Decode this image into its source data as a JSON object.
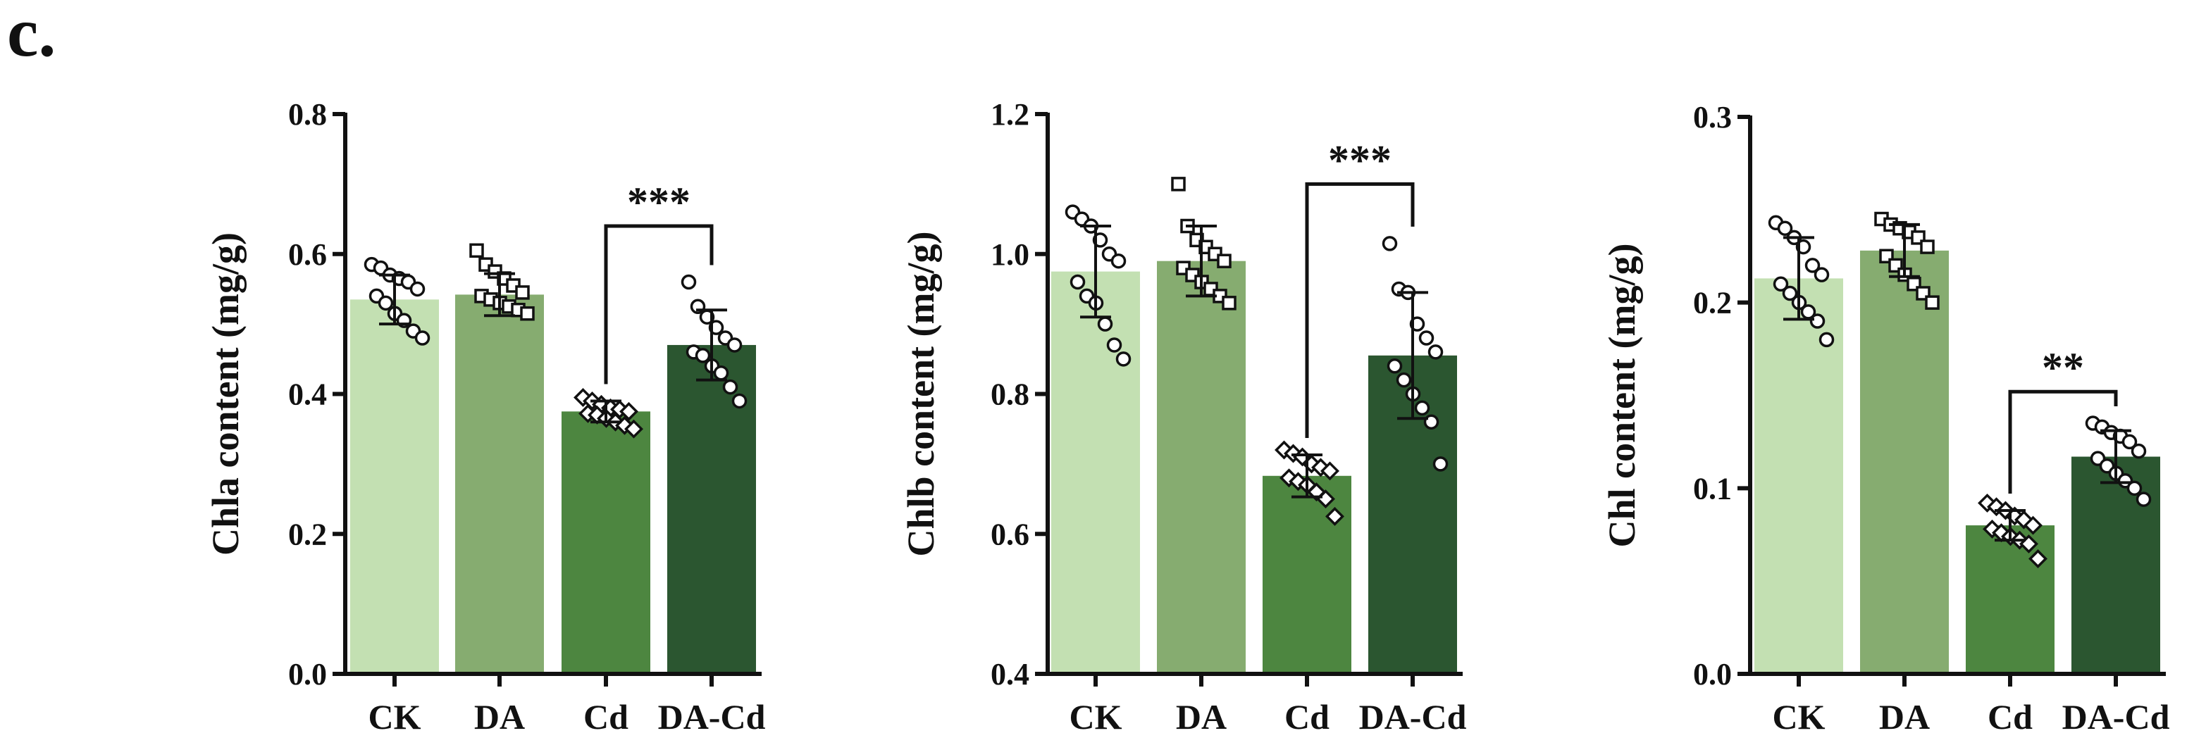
{
  "panel_label": "c.",
  "colors": {
    "CK": "#c3e0b2",
    "DA": "#86ac70",
    "Cd": "#4d8640",
    "DA-Cd": "#2b5630",
    "axis": "#111111",
    "marker_stroke": "#111111"
  },
  "chart_data": [
    {
      "type": "bar",
      "title": "",
      "xlabel": "",
      "ylabel": "Chla content (mg/g)",
      "categories": [
        "CK",
        "DA",
        "Cd",
        "DA-Cd"
      ],
      "values": [
        0.535,
        0.542,
        0.375,
        0.47
      ],
      "errors": [
        0.035,
        0.03,
        0.015,
        0.05
      ],
      "ylim": [
        0.0,
        0.8
      ],
      "yticks": [
        "0.0",
        "0.2",
        "0.4",
        "0.6",
        "0.8"
      ],
      "points": [
        [
          0.585,
          0.58,
          0.57,
          0.565,
          0.56,
          0.55,
          0.54,
          0.53,
          0.515,
          0.505,
          0.49,
          0.48
        ],
        [
          0.605,
          0.585,
          0.575,
          0.565,
          0.555,
          0.545,
          0.54,
          0.535,
          0.53,
          0.525,
          0.52,
          0.515
        ],
        [
          0.395,
          0.39,
          0.385,
          0.38,
          0.378,
          0.375,
          0.372,
          0.37,
          0.365,
          0.36,
          0.355,
          0.35
        ],
        [
          0.56,
          0.525,
          0.51,
          0.495,
          0.48,
          0.47,
          0.46,
          0.455,
          0.44,
          0.43,
          0.41,
          0.39
        ]
      ],
      "markers": [
        "circle",
        "square",
        "diamond",
        "circle"
      ],
      "significance": [
        {
          "from": "Cd",
          "to": "DA-Cd",
          "label": "***",
          "y": 0.64
        }
      ]
    },
    {
      "type": "bar",
      "title": "",
      "xlabel": "",
      "ylabel": "Chlb content (mg/g)",
      "categories": [
        "CK",
        "DA",
        "Cd",
        "DA-Cd"
      ],
      "values": [
        0.975,
        0.99,
        0.683,
        0.855
      ],
      "errors": [
        0.065,
        0.05,
        0.03,
        0.09
      ],
      "ylim": [
        0.4,
        1.2
      ],
      "yticks": [
        "0.4",
        "0.6",
        "0.8",
        "1.0",
        "1.2"
      ],
      "points": [
        [
          1.06,
          1.05,
          1.04,
          1.02,
          1.0,
          0.99,
          0.96,
          0.94,
          0.93,
          0.9,
          0.87,
          0.85
        ],
        [
          1.1,
          1.04,
          1.02,
          1.01,
          1.0,
          0.99,
          0.98,
          0.97,
          0.96,
          0.95,
          0.94,
          0.93
        ],
        [
          0.72,
          0.715,
          0.71,
          0.7,
          0.695,
          0.69,
          0.68,
          0.675,
          0.67,
          0.66,
          0.65,
          0.625
        ],
        [
          1.015,
          0.95,
          0.945,
          0.9,
          0.88,
          0.86,
          0.84,
          0.82,
          0.8,
          0.78,
          0.76,
          0.7
        ]
      ],
      "markers": [
        "circle",
        "square",
        "diamond",
        "circle"
      ],
      "significance": [
        {
          "from": "Cd",
          "to": "DA-Cd",
          "label": "***",
          "y": 1.1
        }
      ]
    },
    {
      "type": "bar",
      "title": "",
      "xlabel": "",
      "ylabel": "Chl content (mg/g)",
      "categories": [
        "CK",
        "DA",
        "Cd",
        "DA-Cd"
      ],
      "values": [
        0.213,
        0.228,
        0.08,
        0.117
      ],
      "errors": [
        0.022,
        0.014,
        0.008,
        0.014
      ],
      "ylim": [
        0.0,
        0.3
      ],
      "yticks": [
        "0.0",
        "0.1",
        "0.2",
        "0.3"
      ],
      "points": [
        [
          0.243,
          0.24,
          0.235,
          0.23,
          0.22,
          0.215,
          0.21,
          0.205,
          0.2,
          0.195,
          0.19,
          0.18
        ],
        [
          0.245,
          0.242,
          0.24,
          0.238,
          0.235,
          0.23,
          0.225,
          0.22,
          0.215,
          0.21,
          0.205,
          0.2
        ],
        [
          0.092,
          0.09,
          0.088,
          0.085,
          0.083,
          0.08,
          0.078,
          0.076,
          0.074,
          0.072,
          0.07,
          0.062
        ],
        [
          0.135,
          0.133,
          0.13,
          0.128,
          0.125,
          0.12,
          0.116,
          0.112,
          0.108,
          0.104,
          0.1,
          0.094
        ]
      ],
      "markers": [
        "circle",
        "square",
        "diamond",
        "circle"
      ],
      "significance": [
        {
          "from": "Cd",
          "to": "DA-Cd",
          "label": "**",
          "y": 0.152
        }
      ]
    }
  ]
}
